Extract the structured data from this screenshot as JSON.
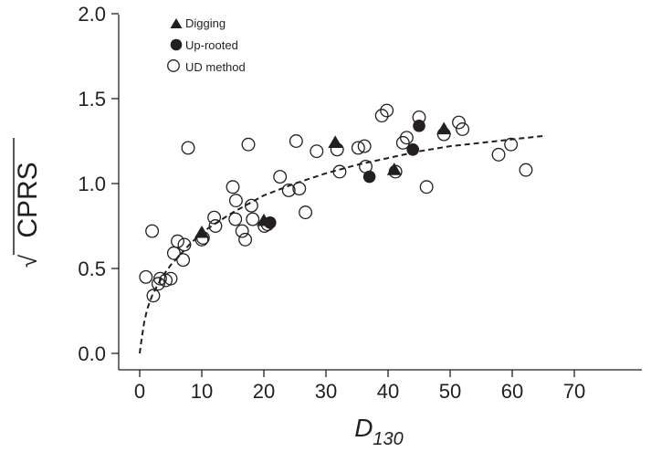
{
  "chart_data": {
    "type": "scatter",
    "title": "",
    "xlabel": "D",
    "xlabel_sub": "130",
    "ylabel": "CPRS",
    "ylabel_prefix": "√",
    "xlim": [
      -2,
      70
    ],
    "ylim": [
      -0.05,
      2.0
    ],
    "xticks": [
      0,
      10,
      20,
      30,
      40,
      50,
      60,
      70
    ],
    "yticks": [
      0.0,
      0.5,
      1.0,
      1.5,
      2.0
    ],
    "ytick_labels": [
      "0.0",
      "0.5",
      "1.0",
      "1.5",
      "2.0"
    ],
    "grid": false,
    "legend_position": "top-left",
    "series": [
      {
        "name": "Digging",
        "marker": "filled-triangle",
        "points": [
          [
            10,
            0.71
          ],
          [
            20,
            0.78
          ],
          [
            31.5,
            1.24
          ],
          [
            41,
            1.08
          ],
          [
            49,
            1.32
          ]
        ]
      },
      {
        "name": "Up-rooted",
        "marker": "filled-circle",
        "points": [
          [
            21,
            0.77
          ],
          [
            37,
            1.04
          ],
          [
            44,
            1.2
          ],
          [
            45,
            1.34
          ]
        ]
      },
      {
        "name": "UD method",
        "marker": "open-circle",
        "points": [
          [
            1,
            0.45
          ],
          [
            2,
            0.72
          ],
          [
            2.2,
            0.34
          ],
          [
            3,
            0.41
          ],
          [
            3.3,
            0.44
          ],
          [
            4.2,
            0.43
          ],
          [
            5,
            0.44
          ],
          [
            5.5,
            0.59
          ],
          [
            6.1,
            0.66
          ],
          [
            7,
            0.55
          ],
          [
            7.2,
            0.64
          ],
          [
            7.8,
            1.21
          ],
          [
            10,
            0.67
          ],
          [
            10.2,
            0.68
          ],
          [
            12,
            0.8
          ],
          [
            12.2,
            0.75
          ],
          [
            15,
            0.98
          ],
          [
            15.4,
            0.79
          ],
          [
            15.5,
            0.9
          ],
          [
            16.5,
            0.72
          ],
          [
            17,
            0.67
          ],
          [
            17.5,
            1.23
          ],
          [
            18,
            0.87
          ],
          [
            18.2,
            0.79
          ],
          [
            20.1,
            0.75
          ],
          [
            20.6,
            0.76
          ],
          [
            22.6,
            1.04
          ],
          [
            24,
            0.96
          ],
          [
            25.2,
            1.25
          ],
          [
            25.7,
            0.97
          ],
          [
            26.7,
            0.83
          ],
          [
            28.5,
            1.19
          ],
          [
            31.8,
            1.2
          ],
          [
            32.2,
            1.07
          ],
          [
            35.2,
            1.21
          ],
          [
            36.2,
            1.22
          ],
          [
            36.4,
            1.1
          ],
          [
            39,
            1.4
          ],
          [
            39.8,
            1.43
          ],
          [
            41.2,
            1.07
          ],
          [
            42.4,
            1.24
          ],
          [
            43,
            1.27
          ],
          [
            45,
            1.39
          ],
          [
            46.2,
            0.98
          ],
          [
            49,
            1.29
          ],
          [
            51.4,
            1.36
          ],
          [
            52,
            1.32
          ],
          [
            57.8,
            1.17
          ],
          [
            59.8,
            1.23
          ],
          [
            62.2,
            1.08
          ]
        ]
      }
    ],
    "fit_curve": {
      "style": "dashed",
      "points": [
        [
          0,
          0.0
        ],
        [
          0.3,
          0.08
        ],
        [
          0.7,
          0.18
        ],
        [
          1.2,
          0.26
        ],
        [
          2,
          0.34
        ],
        [
          3,
          0.41
        ],
        [
          4,
          0.47
        ],
        [
          5,
          0.52
        ],
        [
          6,
          0.56
        ],
        [
          7,
          0.6
        ],
        [
          8,
          0.64
        ],
        [
          10,
          0.71
        ],
        [
          12,
          0.76
        ],
        [
          15,
          0.83
        ],
        [
          18,
          0.89
        ],
        [
          20,
          0.93
        ],
        [
          25,
          1.0
        ],
        [
          30,
          1.06
        ],
        [
          35,
          1.11
        ],
        [
          40,
          1.15
        ],
        [
          45,
          1.19
        ],
        [
          50,
          1.22
        ],
        [
          55,
          1.24
        ],
        [
          60,
          1.26
        ],
        [
          65,
          1.28
        ]
      ]
    }
  }
}
